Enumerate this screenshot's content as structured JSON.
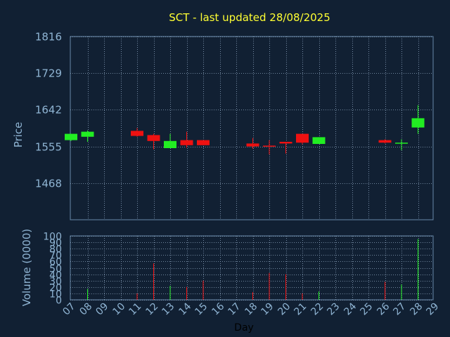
{
  "chart_data": {
    "type": "candlestick",
    "title": "SCT - last updated 28/08/2025",
    "xlabel": "Day",
    "price_panel": {
      "ylabel": "Price",
      "ylim": [
        1381,
        1816
      ],
      "yticks": [
        1816,
        1729,
        1642,
        1555,
        1468
      ]
    },
    "volume_panel": {
      "ylabel": "Volume (0000)",
      "ylim": [
        0,
        100
      ],
      "yticks": [
        0,
        10,
        20,
        30,
        40,
        50,
        60,
        70,
        80,
        90,
        100
      ]
    },
    "x_tick_labels": [
      "07",
      "08",
      "09",
      "10",
      "11",
      "12",
      "13",
      "14",
      "15",
      "16",
      "17",
      "18",
      "19",
      "20",
      "21",
      "22",
      "23",
      "24",
      "25",
      "26",
      "27",
      "28",
      "29"
    ],
    "candles": [
      {
        "day": "07",
        "open": 1570,
        "high": 1585,
        "low": 1568,
        "close": 1585,
        "volume": 0
      },
      {
        "day": "08",
        "open": 1578,
        "high": 1593,
        "low": 1566,
        "close": 1590,
        "volume": 17
      },
      {
        "day": "11",
        "open": 1592,
        "high": 1599,
        "low": 1578,
        "close": 1580,
        "volume": 10
      },
      {
        "day": "12",
        "open": 1582,
        "high": 1585,
        "low": 1548,
        "close": 1568,
        "volume": 57
      },
      {
        "day": "13",
        "open": 1551,
        "high": 1585,
        "low": 1551,
        "close": 1568,
        "volume": 22
      },
      {
        "day": "14",
        "open": 1570,
        "high": 1590,
        "low": 1552,
        "close": 1558,
        "volume": 20
      },
      {
        "day": "15",
        "open": 1570,
        "high": 1570,
        "low": 1558,
        "close": 1558,
        "volume": 30
      },
      {
        "day": "18",
        "open": 1562,
        "high": 1575,
        "low": 1550,
        "close": 1555,
        "volume": 12
      },
      {
        "day": "19",
        "open": 1557,
        "high": 1570,
        "low": 1536,
        "close": 1555,
        "volume": 42
      },
      {
        "day": "20",
        "open": 1566,
        "high": 1566,
        "low": 1538,
        "close": 1562,
        "volume": 40
      },
      {
        "day": "21",
        "open": 1585,
        "high": 1585,
        "low": 1560,
        "close": 1564,
        "volume": 10
      },
      {
        "day": "22",
        "open": 1561,
        "high": 1577,
        "low": 1561,
        "close": 1577,
        "volume": 13
      },
      {
        "day": "26",
        "open": 1570,
        "high": 1572,
        "low": 1562,
        "close": 1564,
        "volume": 28
      },
      {
        "day": "27",
        "open": 1562,
        "high": 1572,
        "low": 1546,
        "close": 1564,
        "volume": 24
      },
      {
        "day": "28",
        "open": 1600,
        "high": 1653,
        "low": 1585,
        "close": 1622,
        "volume": 95
      }
    ],
    "colors": {
      "background": "#112033",
      "panel_border": "#6688aa",
      "grid": "#8ea6c0",
      "up": "#22ee22",
      "down": "#ee1111",
      "title": "#ffff33",
      "axis_text": "#8fb4d3",
      "xlabel_text": "#000000"
    }
  }
}
